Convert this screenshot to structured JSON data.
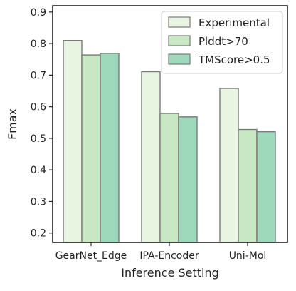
{
  "chart_data": {
    "type": "bar",
    "title": "",
    "xlabel": "Inference Setting",
    "ylabel": "Fmax",
    "categories": [
      "GearNet_Edge",
      "IPA-Encoder",
      "Uni-Mol"
    ],
    "series": [
      {
        "name": "Experimental",
        "values": [
          0.81,
          0.711,
          0.658
        ],
        "color": "#e8f5e1"
      },
      {
        "name": "Plddt>70",
        "values": [
          0.764,
          0.579,
          0.528
        ],
        "color": "#c8e8c3"
      },
      {
        "name": "TMScore>0.5",
        "values": [
          0.769,
          0.568,
          0.521
        ],
        "color": "#9fd9bb"
      }
    ],
    "ylim": [
      0.17,
      0.92
    ],
    "yticks": [
      0.2,
      0.3,
      0.4,
      0.5,
      0.6,
      0.7,
      0.8,
      0.9
    ],
    "ytick_labels": [
      "0.2",
      "0.3",
      "0.4",
      "0.5",
      "0.6",
      "0.7",
      "0.8",
      "0.9"
    ],
    "grid": false,
    "legend_position": "top-right",
    "bar_edge_color": "#7a7a7a",
    "axis_color": "#222222"
  }
}
